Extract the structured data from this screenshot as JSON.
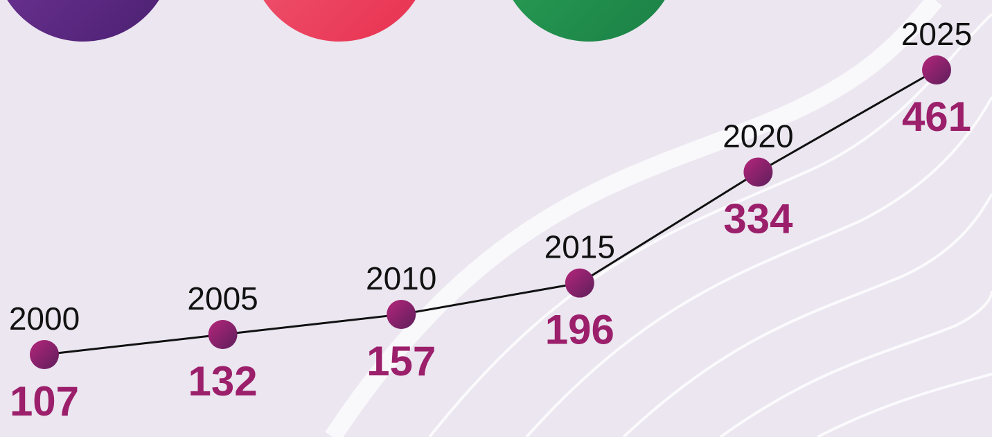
{
  "chart_data": {
    "type": "line",
    "categories": [
      "2000",
      "2005",
      "2010",
      "2015",
      "2020",
      "2025"
    ],
    "values": [
      107,
      132,
      157,
      196,
      334,
      461
    ],
    "color": "#9b1f6a"
  }
}
